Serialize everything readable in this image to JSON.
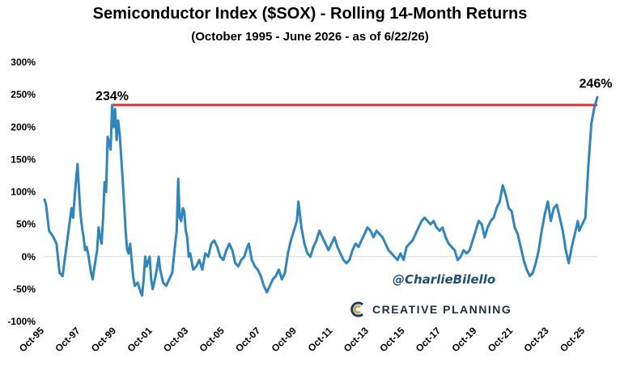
{
  "chart_data": {
    "type": "line",
    "title": "Semiconductor Index ($SOX) - Rolling 14-Month Returns",
    "subtitle": "(October 1995 - June 2026 - as of 6/22/26)",
    "y_unit": "%",
    "ylim": [
      -100,
      300
    ],
    "y_ticks": [
      -100,
      -50,
      0,
      50,
      100,
      150,
      200,
      250,
      300
    ],
    "y_tick_labels": [
      "-100%",
      "-50%",
      "0%",
      "50%",
      "100%",
      "150%",
      "200%",
      "250%",
      "300%"
    ],
    "x_range": [
      "1995-10",
      "2026-06"
    ],
    "x_ticks": [
      "1995-10",
      "1997-10",
      "1999-10",
      "2001-10",
      "2003-10",
      "2005-10",
      "2007-10",
      "2009-10",
      "2011-10",
      "2013-10",
      "2015-10",
      "2017-10",
      "2019-10",
      "2021-10",
      "2023-10",
      "2025-10"
    ],
    "x_tick_labels": [
      "Oct-95",
      "Oct-97",
      "Oct-99",
      "Oct-01",
      "Oct-03",
      "Oct-05",
      "Oct-07",
      "Oct-09",
      "Oct-11",
      "Oct-13",
      "Oct-15",
      "Oct-17",
      "Oct-19",
      "Oct-21",
      "Oct-23",
      "Oct-25"
    ],
    "grid": false,
    "series_color": "#2e86c1",
    "reference_line": {
      "value": 234,
      "color": "#e03131",
      "label": "234%"
    },
    "end_label": "246%",
    "series": [
      {
        "points": [
          [
            "1995-10",
            88
          ],
          [
            "1995-11",
            80
          ],
          [
            "1996-01",
            40
          ],
          [
            "1996-04",
            30
          ],
          [
            "1996-06",
            20
          ],
          [
            "1996-08",
            -25
          ],
          [
            "1996-10",
            -30
          ],
          [
            "1996-12",
            5
          ],
          [
            "1997-02",
            40
          ],
          [
            "1997-04",
            75
          ],
          [
            "1997-05",
            60
          ],
          [
            "1997-06",
            90
          ],
          [
            "1997-07",
            120
          ],
          [
            "1997-08",
            143
          ],
          [
            "1997-09",
            100
          ],
          [
            "1997-10",
            65
          ],
          [
            "1997-11",
            45
          ],
          [
            "1997-12",
            30
          ],
          [
            "1998-01",
            10
          ],
          [
            "1998-02",
            15
          ],
          [
            "1998-03",
            5
          ],
          [
            "1998-04",
            -10
          ],
          [
            "1998-05",
            -25
          ],
          [
            "1998-06",
            -35
          ],
          [
            "1998-07",
            -20
          ],
          [
            "1998-09",
            10
          ],
          [
            "1998-10",
            45
          ],
          [
            "1998-11",
            30
          ],
          [
            "1998-12",
            20
          ],
          [
            "1999-01",
            60
          ],
          [
            "1999-02",
            115
          ],
          [
            "1999-03",
            100
          ],
          [
            "1999-04",
            185
          ],
          [
            "1999-05",
            175
          ],
          [
            "1999-06",
            165
          ],
          [
            "1999-07",
            234
          ],
          [
            "1999-08",
            200
          ],
          [
            "1999-09",
            228
          ],
          [
            "1999-10",
            180
          ],
          [
            "1999-11",
            210
          ],
          [
            "1999-12",
            190
          ],
          [
            "2000-01",
            155
          ],
          [
            "2000-02",
            120
          ],
          [
            "2000-03",
            80
          ],
          [
            "2000-04",
            40
          ],
          [
            "2000-05",
            10
          ],
          [
            "2000-06",
            5
          ],
          [
            "2000-07",
            20
          ],
          [
            "2000-08",
            -5
          ],
          [
            "2000-09",
            -30
          ],
          [
            "2000-10",
            -45
          ],
          [
            "2000-12",
            -40
          ],
          [
            "2001-02",
            -55
          ],
          [
            "2001-03",
            -60
          ],
          [
            "2001-04",
            -35
          ],
          [
            "2001-05",
            0
          ],
          [
            "2001-06",
            -15
          ],
          [
            "2001-08",
            0
          ],
          [
            "2001-09",
            -35
          ],
          [
            "2001-10",
            -50
          ],
          [
            "2001-12",
            -30
          ],
          [
            "2002-02",
            0
          ],
          [
            "2002-03",
            -20
          ],
          [
            "2002-05",
            -40
          ],
          [
            "2002-07",
            -45
          ],
          [
            "2002-09",
            -35
          ],
          [
            "2002-11",
            -25
          ],
          [
            "2003-01",
            20
          ],
          [
            "2003-02",
            40
          ],
          [
            "2003-03",
            120
          ],
          [
            "2003-04",
            60
          ],
          [
            "2003-05",
            55
          ],
          [
            "2003-06",
            75
          ],
          [
            "2003-07",
            70
          ],
          [
            "2003-08",
            40
          ],
          [
            "2003-09",
            30
          ],
          [
            "2003-10",
            0
          ],
          [
            "2003-11",
            5
          ],
          [
            "2004-01",
            -20
          ],
          [
            "2004-03",
            -15
          ],
          [
            "2004-05",
            -5
          ],
          [
            "2004-07",
            -20
          ],
          [
            "2004-09",
            5
          ],
          [
            "2004-11",
            0
          ],
          [
            "2005-01",
            20
          ],
          [
            "2005-03",
            25
          ],
          [
            "2005-05",
            15
          ],
          [
            "2005-07",
            0
          ],
          [
            "2005-09",
            -5
          ],
          [
            "2005-11",
            10
          ],
          [
            "2006-01",
            20
          ],
          [
            "2006-03",
            10
          ],
          [
            "2006-05",
            -10
          ],
          [
            "2006-07",
            -15
          ],
          [
            "2006-09",
            -5
          ],
          [
            "2006-11",
            0
          ],
          [
            "2007-01",
            15
          ],
          [
            "2007-02",
            20
          ],
          [
            "2007-04",
            -5
          ],
          [
            "2007-06",
            -15
          ],
          [
            "2007-08",
            -20
          ],
          [
            "2007-10",
            -30
          ],
          [
            "2007-12",
            -45
          ],
          [
            "2008-02",
            -55
          ],
          [
            "2008-04",
            -45
          ],
          [
            "2008-06",
            -35
          ],
          [
            "2008-08",
            -30
          ],
          [
            "2008-10",
            -20
          ],
          [
            "2008-12",
            -35
          ],
          [
            "2009-02",
            -25
          ],
          [
            "2009-04",
            5
          ],
          [
            "2009-06",
            25
          ],
          [
            "2009-08",
            40
          ],
          [
            "2009-10",
            55
          ],
          [
            "2009-11",
            85
          ],
          [
            "2010-01",
            45
          ],
          [
            "2010-03",
            20
          ],
          [
            "2010-05",
            5
          ],
          [
            "2010-07",
            0
          ],
          [
            "2010-09",
            15
          ],
          [
            "2010-11",
            25
          ],
          [
            "2011-01",
            40
          ],
          [
            "2011-03",
            30
          ],
          [
            "2011-05",
            20
          ],
          [
            "2011-07",
            10
          ],
          [
            "2011-09",
            20
          ],
          [
            "2011-11",
            30
          ],
          [
            "2012-01",
            15
          ],
          [
            "2012-03",
            5
          ],
          [
            "2012-05",
            -5
          ],
          [
            "2012-07",
            -10
          ],
          [
            "2012-09",
            -5
          ],
          [
            "2012-11",
            10
          ],
          [
            "2013-01",
            20
          ],
          [
            "2013-03",
            15
          ],
          [
            "2013-05",
            25
          ],
          [
            "2013-07",
            35
          ],
          [
            "2013-09",
            45
          ],
          [
            "2013-11",
            40
          ],
          [
            "2014-01",
            30
          ],
          [
            "2014-03",
            40
          ],
          [
            "2014-05",
            35
          ],
          [
            "2014-07",
            30
          ],
          [
            "2014-09",
            20
          ],
          [
            "2014-11",
            10
          ],
          [
            "2015-01",
            5
          ],
          [
            "2015-03",
            0
          ],
          [
            "2015-05",
            -5
          ],
          [
            "2015-07",
            5
          ],
          [
            "2015-09",
            -5
          ],
          [
            "2015-11",
            15
          ],
          [
            "2016-01",
            20
          ],
          [
            "2016-03",
            25
          ],
          [
            "2016-05",
            35
          ],
          [
            "2016-07",
            45
          ],
          [
            "2016-09",
            55
          ],
          [
            "2016-11",
            60
          ],
          [
            "2017-01",
            55
          ],
          [
            "2017-03",
            50
          ],
          [
            "2017-05",
            55
          ],
          [
            "2017-07",
            45
          ],
          [
            "2017-09",
            40
          ],
          [
            "2017-11",
            45
          ],
          [
            "2018-01",
            30
          ],
          [
            "2018-03",
            20
          ],
          [
            "2018-05",
            15
          ],
          [
            "2018-07",
            10
          ],
          [
            "2018-09",
            -5
          ],
          [
            "2018-11",
            0
          ],
          [
            "2019-01",
            10
          ],
          [
            "2019-03",
            5
          ],
          [
            "2019-05",
            10
          ],
          [
            "2019-07",
            25
          ],
          [
            "2019-09",
            40
          ],
          [
            "2019-11",
            55
          ],
          [
            "2020-01",
            50
          ],
          [
            "2020-03",
            30
          ],
          [
            "2020-05",
            45
          ],
          [
            "2020-07",
            55
          ],
          [
            "2020-09",
            60
          ],
          [
            "2020-11",
            75
          ],
          [
            "2021-01",
            85
          ],
          [
            "2021-03",
            110
          ],
          [
            "2021-05",
            95
          ],
          [
            "2021-07",
            75
          ],
          [
            "2021-09",
            70
          ],
          [
            "2021-11",
            45
          ],
          [
            "2022-01",
            35
          ],
          [
            "2022-03",
            15
          ],
          [
            "2022-05",
            -5
          ],
          [
            "2022-07",
            -20
          ],
          [
            "2022-09",
            -30
          ],
          [
            "2022-11",
            -25
          ],
          [
            "2023-01",
            -10
          ],
          [
            "2023-03",
            10
          ],
          [
            "2023-05",
            40
          ],
          [
            "2023-07",
            65
          ],
          [
            "2023-09",
            85
          ],
          [
            "2023-11",
            55
          ],
          [
            "2024-01",
            75
          ],
          [
            "2024-03",
            80
          ],
          [
            "2024-05",
            60
          ],
          [
            "2024-07",
            40
          ],
          [
            "2024-09",
            10
          ],
          [
            "2024-11",
            -10
          ],
          [
            "2025-01",
            15
          ],
          [
            "2025-03",
            35
          ],
          [
            "2025-05",
            55
          ],
          [
            "2025-06",
            40
          ],
          [
            "2025-08",
            50
          ],
          [
            "2025-10",
            60
          ],
          [
            "2025-12",
            140
          ],
          [
            "2026-02",
            205
          ],
          [
            "2026-04",
            230
          ],
          [
            "2026-06",
            246
          ]
        ]
      }
    ]
  },
  "watermark": {
    "handle": "@CharlieBilello",
    "brand": "CREATIVE PLANNING",
    "brand_color": "#1f2d3d",
    "logo_colors": [
      "#1f3a5f",
      "#c9a54c"
    ]
  }
}
